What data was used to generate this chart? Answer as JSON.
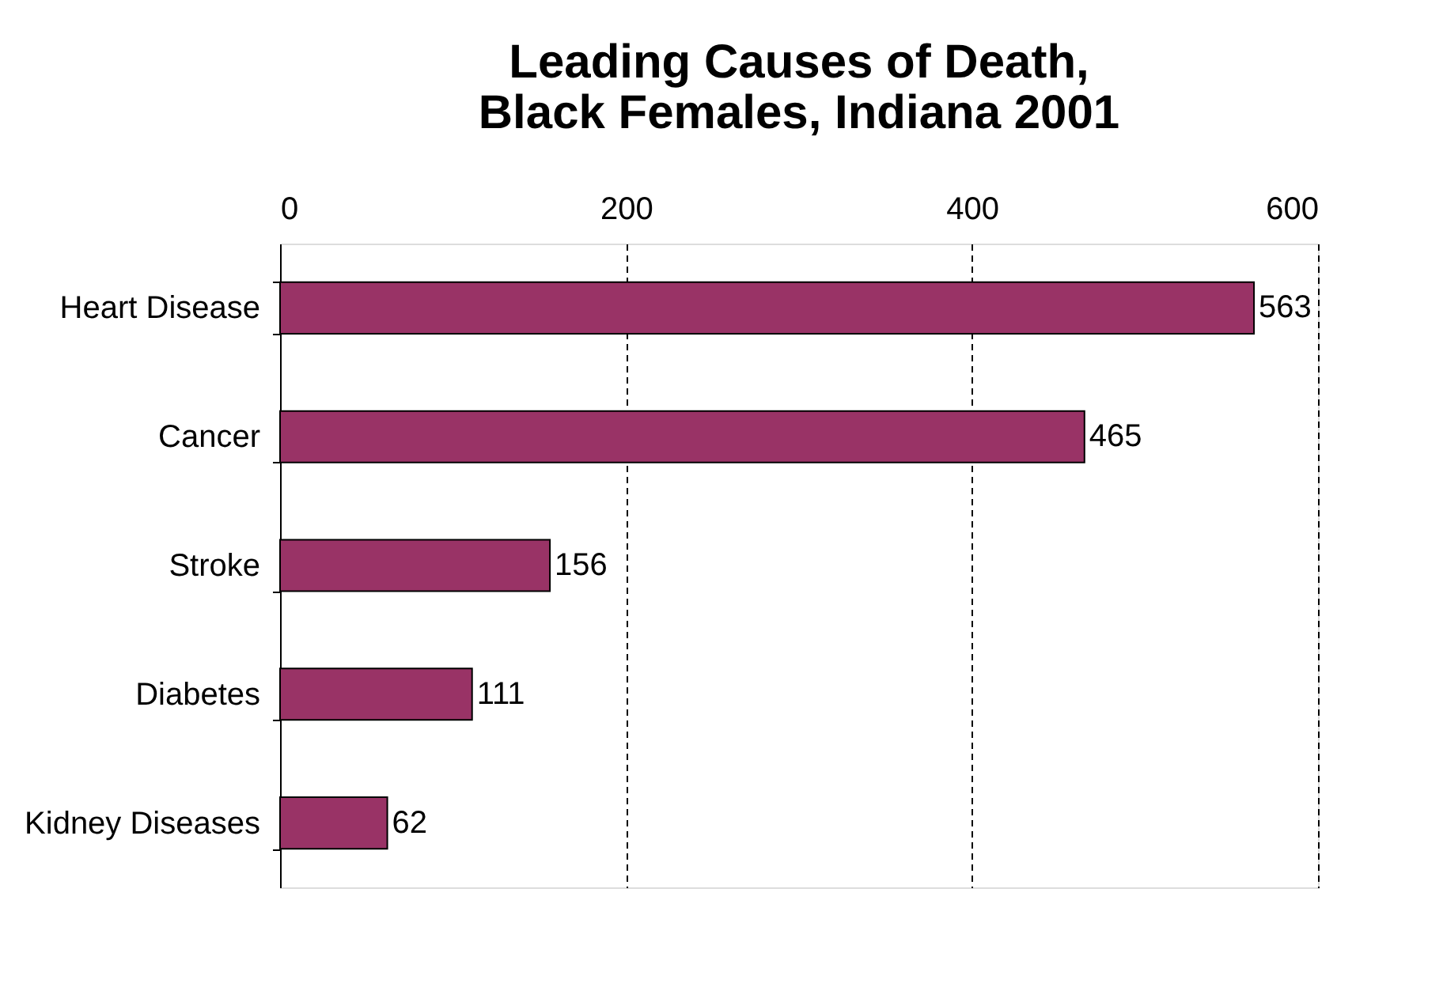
{
  "chart_data": {
    "type": "bar",
    "orientation": "horizontal",
    "title": "Leading Causes of Death,\nBlack Females, Indiana 2001",
    "categories": [
      "Heart Disease",
      "Cancer",
      "Stroke",
      "Diabetes",
      "Kidney Diseases"
    ],
    "values": [
      563,
      465,
      156,
      111,
      62
    ],
    "color": "#993366",
    "xlim": [
      0,
      600
    ],
    "xticks": [
      0,
      200,
      400,
      600
    ],
    "grid": "x",
    "data_labels": true
  }
}
